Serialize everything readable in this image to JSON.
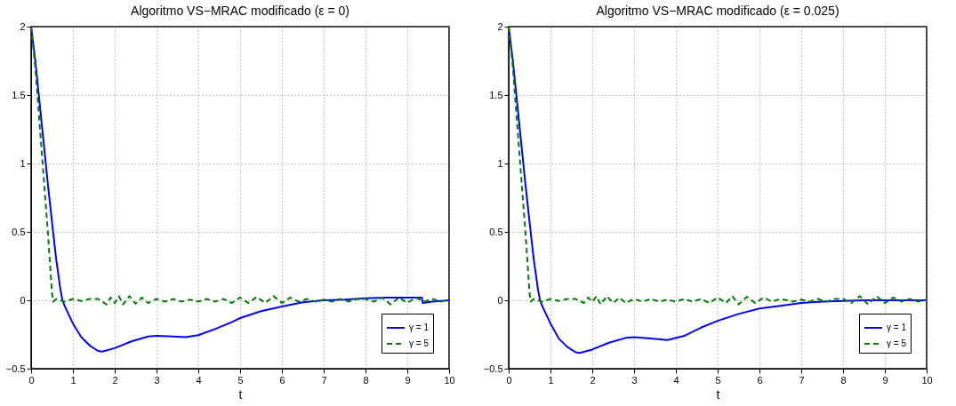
{
  "chart_data": [
    {
      "type": "line",
      "title": "Algoritmo VS−MRAC modificado (ε = 0)",
      "xlabel": "t",
      "xlim": [
        0,
        10
      ],
      "ylim": [
        -0.5,
        2
      ],
      "xticks": [
        0,
        1,
        2,
        3,
        4,
        5,
        6,
        7,
        8,
        9,
        10
      ],
      "yticks": [
        -0.5,
        0,
        0.5,
        1,
        1.5,
        2
      ],
      "grid": true,
      "legend": "bottom right",
      "series": [
        {
          "name": "γ = 1",
          "color": "#0000ff",
          "line_style": "solid",
          "x": [
            0,
            0.1,
            0.2,
            0.3,
            0.4,
            0.5,
            0.6,
            0.7,
            0.75,
            0.8,
            1.0,
            1.2,
            1.4,
            1.6,
            1.7,
            2.0,
            2.4,
            2.8,
            3.0,
            3.4,
            3.7,
            4.0,
            4.4,
            4.8,
            5.0,
            5.5,
            6.0,
            6.5,
            7.0,
            7.5,
            8.0,
            8.5,
            9.0,
            9.35,
            9.37,
            9.6,
            10
          ],
          "values": [
            2,
            1.75,
            1.45,
            1.15,
            0.85,
            0.57,
            0.3,
            0.08,
            0,
            -0.04,
            -0.17,
            -0.27,
            -0.33,
            -0.37,
            -0.375,
            -0.35,
            -0.3,
            -0.265,
            -0.26,
            -0.265,
            -0.27,
            -0.255,
            -0.21,
            -0.16,
            -0.13,
            -0.08,
            -0.045,
            -0.015,
            0,
            0.005,
            0.015,
            0.02,
            0.02,
            0.02,
            -0.02,
            -0.01,
            0
          ]
        },
        {
          "name": "γ = 5",
          "color": "#008000",
          "line_style": "dashed",
          "x": [
            0,
            0.1,
            0.2,
            0.3,
            0.4,
            0.5,
            0.53,
            0.6,
            0.8,
            1.0,
            1.2,
            1.4,
            1.6,
            1.8,
            1.9,
            2.0,
            2.1,
            2.2,
            2.35,
            2.5,
            2.65,
            2.8,
            3.0,
            3.2,
            3.4,
            3.6,
            3.8,
            4.0,
            4.2,
            4.4,
            4.6,
            4.8,
            5.0,
            5.2,
            5.4,
            5.6,
            5.8,
            6.0,
            6.2,
            6.4,
            6.6,
            6.8,
            7.0,
            7.2,
            7.4,
            7.6,
            7.8,
            8.0,
            8.2,
            8.4,
            8.6,
            8.8,
            9.0,
            9.2,
            9.4,
            9.6,
            9.8,
            10
          ],
          "values": [
            2,
            1.7,
            1.3,
            0.9,
            0.5,
            0.05,
            -0.01,
            0.01,
            -0.01,
            0.01,
            -0.005,
            0.01,
            0.01,
            -0.03,
            0.02,
            -0.02,
            0.03,
            -0.03,
            0.03,
            -0.025,
            0.02,
            -0.02,
            0.01,
            -0.01,
            0.01,
            -0.01,
            0.005,
            -0.01,
            0.01,
            -0.01,
            0.01,
            -0.02,
            0.02,
            -0.02,
            0.025,
            -0.02,
            0.03,
            -0.02,
            0.02,
            -0.01,
            0.01,
            -0.01,
            0.005,
            -0.01,
            0.01,
            -0.01,
            0.01,
            0.01,
            -0.01,
            0.02,
            -0.03,
            0.02,
            -0.02,
            0.02,
            -0.01,
            0.01,
            -0.01,
            0.005
          ]
        }
      ]
    },
    {
      "type": "line",
      "title": "Algoritmo VS−MRAC modificado (ε = 0.025)",
      "xlabel": "t",
      "xlim": [
        0,
        10
      ],
      "ylim": [
        -0.5,
        2
      ],
      "xticks": [
        0,
        1,
        2,
        3,
        4,
        5,
        6,
        7,
        8,
        9,
        10
      ],
      "yticks": [
        -0.5,
        0,
        0.5,
        1,
        1.5,
        2
      ],
      "grid": true,
      "legend": "bottom right",
      "series": [
        {
          "name": "γ = 1",
          "color": "#0000ff",
          "line_style": "solid",
          "x": [
            0,
            0.1,
            0.2,
            0.3,
            0.4,
            0.5,
            0.6,
            0.7,
            0.75,
            0.8,
            1.0,
            1.2,
            1.4,
            1.6,
            1.7,
            2.0,
            2.4,
            2.8,
            3.0,
            3.4,
            3.8,
            4.2,
            4.6,
            5.0,
            5.5,
            6.0,
            6.5,
            7.0,
            7.5,
            8.0,
            8.5,
            9.0,
            9.5,
            10
          ],
          "values": [
            2,
            1.75,
            1.45,
            1.15,
            0.85,
            0.57,
            0.3,
            0.08,
            0,
            -0.04,
            -0.17,
            -0.28,
            -0.34,
            -0.38,
            -0.385,
            -0.36,
            -0.31,
            -0.275,
            -0.27,
            -0.28,
            -0.29,
            -0.26,
            -0.2,
            -0.15,
            -0.1,
            -0.06,
            -0.04,
            -0.02,
            -0.01,
            -0.005,
            0,
            0,
            0,
            0
          ]
        },
        {
          "name": "γ = 5",
          "color": "#008000",
          "line_style": "dashed",
          "x": [
            0,
            0.1,
            0.2,
            0.3,
            0.4,
            0.5,
            0.53,
            0.6,
            0.8,
            1.0,
            1.2,
            1.4,
            1.6,
            1.8,
            1.9,
            2.0,
            2.1,
            2.2,
            2.35,
            2.5,
            2.65,
            2.8,
            3.0,
            3.2,
            3.4,
            3.6,
            3.8,
            4.0,
            4.2,
            4.4,
            4.6,
            4.8,
            5.0,
            5.2,
            5.35,
            5.5,
            5.7,
            5.9,
            6.1,
            6.3,
            6.5,
            6.8,
            7.0,
            7.2,
            7.4,
            7.6,
            7.8,
            8.0,
            8.2,
            8.4,
            8.6,
            8.8,
            9.0,
            9.2,
            9.4,
            9.6,
            9.8,
            10
          ],
          "values": [
            2,
            1.7,
            1.3,
            0.9,
            0.5,
            0.05,
            -0.01,
            0.01,
            -0.01,
            0.01,
            -0.005,
            0.01,
            0.01,
            -0.02,
            0.02,
            -0.01,
            0.03,
            -0.03,
            0.03,
            -0.02,
            0.02,
            -0.02,
            0.01,
            -0.01,
            0.01,
            -0.01,
            0.005,
            -0.01,
            0.01,
            -0.01,
            0.01,
            -0.02,
            0.02,
            -0.02,
            0.03,
            -0.03,
            0.025,
            -0.02,
            0.02,
            -0.01,
            0.01,
            -0.01,
            0.005,
            -0.01,
            0.01,
            -0.01,
            0.01,
            0.01,
            -0.02,
            0.03,
            -0.03,
            0.03,
            -0.02,
            0.02,
            -0.01,
            0.01,
            -0.01,
            0.005
          ]
        }
      ]
    }
  ]
}
